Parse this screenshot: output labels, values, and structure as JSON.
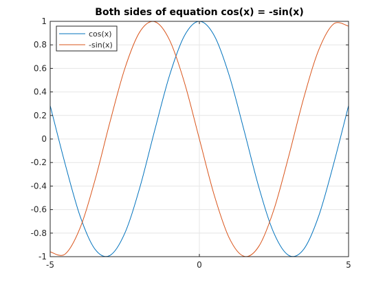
{
  "chart_data": {
    "type": "line",
    "title": "Both sides of equation cos(x) = -sin(x)",
    "xlabel": "",
    "ylabel": "",
    "xlim": [
      -5,
      5
    ],
    "ylim": [
      -1,
      1
    ],
    "xticks": [
      -5,
      0,
      5
    ],
    "yticks": [
      -1,
      -0.8,
      -0.6,
      -0.4,
      -0.2,
      0,
      0.2,
      0.4,
      0.6,
      0.8,
      1
    ],
    "ytick_labels": [
      "-1",
      "-0.8",
      "-0.6",
      "-0.4",
      "-0.2",
      "0",
      "0.2",
      "0.4",
      "0.6",
      "0.8",
      "1"
    ],
    "xtick_labels": [
      "-5",
      "0",
      "5"
    ],
    "grid": true,
    "legend_position": "top-left",
    "x": [
      -5,
      -4.5,
      -4,
      -3.5,
      -3,
      -2.5,
      -2,
      -1.5,
      -1,
      -0.5,
      0,
      0.5,
      1,
      1.5,
      2,
      2.5,
      3,
      3.5,
      4,
      4.5,
      5
    ],
    "series": [
      {
        "name": "cos(x)",
        "color": "#0072BD",
        "values": [
          0.284,
          -0.211,
          -0.654,
          -0.936,
          -0.99,
          -0.801,
          -0.416,
          0.071,
          0.54,
          0.878,
          1.0,
          0.878,
          0.54,
          0.071,
          -0.416,
          -0.801,
          -0.99,
          -0.936,
          -0.654,
          -0.211,
          0.284
        ]
      },
      {
        "name": "-sin(x)",
        "color": "#D95319",
        "values": [
          -0.959,
          -0.978,
          -0.757,
          -0.351,
          0.141,
          0.598,
          0.909,
          0.997,
          0.841,
          0.479,
          0.0,
          -0.479,
          -0.841,
          -0.997,
          -0.909,
          -0.598,
          -0.141,
          0.351,
          0.757,
          0.978,
          0.959
        ]
      }
    ]
  }
}
